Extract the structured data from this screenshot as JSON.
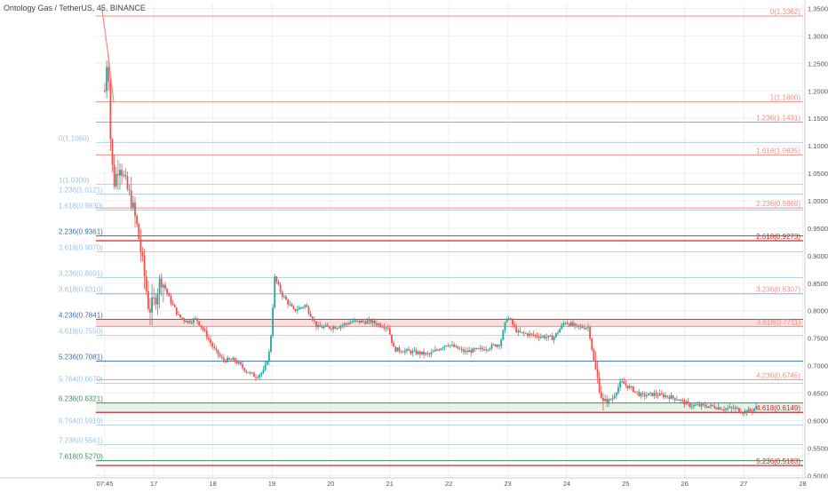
{
  "header": {
    "symbol_title": "Ontology Gas / TetherUS, 45, BINANCE"
  },
  "colors": {
    "fib_a": "#ef8f86",
    "fib_b": "#9ec3e6",
    "level_red": "#d62728",
    "level_blue": "#3b6fb0",
    "level_green": "#3e8e5c",
    "candle_up": "#26a69a",
    "candle_down": "#ef5350",
    "zone_red": "#f7c3c0",
    "zone_green": "#cfe9d7",
    "axis_text": "#555555",
    "grid": "#f0f0f0"
  },
  "chart_data": {
    "type": "candlestick",
    "title": "Ontology Gas / TetherUS, 45, BINANCE",
    "ylim": [
      0.49,
      1.355
    ],
    "y_ticks": [
      "1.3500",
      "1.3000",
      "1.2500",
      "1.2000",
      "1.1500",
      "1.1000",
      "1.0500",
      "1.0000",
      "0.9500",
      "0.9000",
      "0.8500",
      "0.8000",
      "0.7500",
      "0.7000",
      "0.6500",
      "0.6000",
      "0.5500",
      "0.5000"
    ],
    "y_tick_values": [
      1.35,
      1.3,
      1.25,
      1.2,
      1.15,
      1.1,
      1.05,
      1.0,
      0.95,
      0.9,
      0.85,
      0.8,
      0.75,
      0.7,
      0.65,
      0.6,
      0.55,
      0.5
    ],
    "x_ticks": [
      {
        "label": "07:45",
        "t": 0.0
      },
      {
        "label": "17",
        "t": 0.83
      },
      {
        "label": "18",
        "t": 1.83
      },
      {
        "label": "19",
        "t": 2.83
      },
      {
        "label": "20",
        "t": 3.83
      },
      {
        "label": "21",
        "t": 4.83
      },
      {
        "label": "22",
        "t": 5.83
      },
      {
        "label": "23",
        "t": 6.83
      },
      {
        "label": "24",
        "t": 7.83
      },
      {
        "label": "25",
        "t": 8.83
      },
      {
        "label": "26",
        "t": 9.83
      },
      {
        "label": "27",
        "t": 10.83
      },
      {
        "label": "28",
        "t": 11.83
      }
    ],
    "fib_right": [
      {
        "label": "0(1.3362)",
        "value": 1.3362,
        "style": "fib_a"
      },
      {
        "label": "1(1.1800)",
        "value": 1.18,
        "style": "fib_a"
      },
      {
        "label": "1.236(1.1431)",
        "value": 1.1431,
        "style": "fib_a"
      },
      {
        "label": "1.618(1.0835)",
        "value": 1.0835,
        "style": "fib_a"
      },
      {
        "label": "2.236(0.9869)",
        "value": 0.9869,
        "style": "fib_a"
      },
      {
        "label": "2.618(0.9273)",
        "value": 0.9273,
        "style": "level_red"
      },
      {
        "label": "3.236(0.8307)",
        "value": 0.8307,
        "style": "fib_a"
      },
      {
        "label": "3.618(0.7711)",
        "value": 0.7711,
        "style": "fib_a"
      },
      {
        "label": "4.236(0.6745)",
        "value": 0.6745,
        "style": "fib_a"
      },
      {
        "label": "4.618(0.6149)",
        "value": 0.6149,
        "style": "level_red"
      },
      {
        "label": "5.236(0.5183)",
        "value": 0.5183,
        "style": "level_red"
      }
    ],
    "fib_left": [
      {
        "label": "0(1.1060)",
        "value": 1.106,
        "style": "fib_b"
      },
      {
        "label": "1(1.0300)",
        "value": 1.03,
        "style": "fib_b"
      },
      {
        "label": "1.236(1.0121)",
        "value": 1.0121,
        "style": "fib_b"
      },
      {
        "label": "1.618(0.9830)",
        "value": 0.983,
        "style": "fib_b"
      },
      {
        "label": "2.236(0.9361)",
        "value": 0.9361,
        "style": "level_blue"
      },
      {
        "label": "2.618(0.9070)",
        "value": 0.907,
        "style": "fib_b"
      },
      {
        "label": "3.236(0.8601)",
        "value": 0.8601,
        "style": "fib_b"
      },
      {
        "label": "3.618(0.8310)",
        "value": 0.831,
        "style": "fib_b"
      },
      {
        "label": "4.236(0.7841)",
        "value": 0.7841,
        "style": "level_blue"
      },
      {
        "label": "4.618(0.7550)",
        "value": 0.755,
        "style": "fib_b"
      },
      {
        "label": "5.236(0.7081)",
        "value": 0.7081,
        "style": "level_blue"
      },
      {
        "label": "5.764(0.6679)",
        "value": 0.6679,
        "style": "fib_b"
      },
      {
        "label": "6.236(0.6321)",
        "value": 0.6321,
        "style": "level_green"
      },
      {
        "label": "6.764(0.5919)",
        "value": 0.5919,
        "style": "fib_b"
      },
      {
        "label": "7.236(0.5561)",
        "value": 0.5561,
        "style": "fib_b"
      },
      {
        "label": "7.618(0.5270)",
        "value": 0.527,
        "style": "level_green"
      }
    ],
    "zones": [
      {
        "from": 0.7711,
        "to": 0.7841,
        "style": "zone_red"
      },
      {
        "from": 0.6149,
        "to": 0.6321,
        "style": "zone_green"
      }
    ],
    "trend_line": [
      {
        "t": -0.05,
        "v": 1.35
      },
      {
        "t": 0.04,
        "v": 1.28
      },
      {
        "t": 0.15,
        "v": 1.18
      }
    ],
    "price_path": [
      {
        "t": 0.0,
        "v": 1.2
      },
      {
        "t": 0.05,
        "v": 1.28
      },
      {
        "t": 0.1,
        "v": 1.1
      },
      {
        "t": 0.15,
        "v": 1.03
      },
      {
        "t": 0.25,
        "v": 1.07
      },
      {
        "t": 0.35,
        "v": 1.03
      },
      {
        "t": 0.45,
        "v": 1.0
      },
      {
        "t": 0.55,
        "v": 0.95
      },
      {
        "t": 0.65,
        "v": 0.88
      },
      {
        "t": 0.75,
        "v": 0.8
      },
      {
        "t": 0.85,
        "v": 0.82
      },
      {
        "t": 0.95,
        "v": 0.86
      },
      {
        "t": 1.1,
        "v": 0.82
      },
      {
        "t": 1.25,
        "v": 0.79
      },
      {
        "t": 1.4,
        "v": 0.78
      },
      {
        "t": 1.55,
        "v": 0.785
      },
      {
        "t": 1.7,
        "v": 0.76
      },
      {
        "t": 1.85,
        "v": 0.73
      },
      {
        "t": 2.0,
        "v": 0.71
      },
      {
        "t": 2.2,
        "v": 0.71
      },
      {
        "t": 2.4,
        "v": 0.69
      },
      {
        "t": 2.55,
        "v": 0.68
      },
      {
        "t": 2.7,
        "v": 0.69
      },
      {
        "t": 2.8,
        "v": 0.73
      },
      {
        "t": 2.88,
        "v": 0.86
      },
      {
        "t": 3.0,
        "v": 0.83
      },
      {
        "t": 3.2,
        "v": 0.8
      },
      {
        "t": 3.4,
        "v": 0.81
      },
      {
        "t": 3.6,
        "v": 0.77
      },
      {
        "t": 3.9,
        "v": 0.77
      },
      {
        "t": 4.2,
        "v": 0.78
      },
      {
        "t": 4.5,
        "v": 0.78
      },
      {
        "t": 4.8,
        "v": 0.77
      },
      {
        "t": 4.9,
        "v": 0.73
      },
      {
        "t": 5.2,
        "v": 0.725
      },
      {
        "t": 5.5,
        "v": 0.72
      },
      {
        "t": 5.8,
        "v": 0.74
      },
      {
        "t": 6.1,
        "v": 0.725
      },
      {
        "t": 6.4,
        "v": 0.73
      },
      {
        "t": 6.7,
        "v": 0.74
      },
      {
        "t": 6.82,
        "v": 0.79
      },
      {
        "t": 7.0,
        "v": 0.76
      },
      {
        "t": 7.3,
        "v": 0.755
      },
      {
        "t": 7.6,
        "v": 0.75
      },
      {
        "t": 7.8,
        "v": 0.78
      },
      {
        "t": 8.0,
        "v": 0.77
      },
      {
        "t": 8.2,
        "v": 0.77
      },
      {
        "t": 8.3,
        "v": 0.7
      },
      {
        "t": 8.45,
        "v": 0.63
      },
      {
        "t": 8.6,
        "v": 0.64
      },
      {
        "t": 8.75,
        "v": 0.67
      },
      {
        "t": 8.9,
        "v": 0.66
      },
      {
        "t": 9.1,
        "v": 0.645
      },
      {
        "t": 9.3,
        "v": 0.648
      },
      {
        "t": 9.5,
        "v": 0.645
      },
      {
        "t": 9.7,
        "v": 0.64
      },
      {
        "t": 9.9,
        "v": 0.628
      },
      {
        "t": 10.1,
        "v": 0.627
      },
      {
        "t": 10.3,
        "v": 0.626
      },
      {
        "t": 10.5,
        "v": 0.622
      },
      {
        "t": 10.7,
        "v": 0.622
      },
      {
        "t": 10.8,
        "v": 0.616
      },
      {
        "t": 10.95,
        "v": 0.618
      },
      {
        "t": 11.05,
        "v": 0.625
      }
    ]
  }
}
